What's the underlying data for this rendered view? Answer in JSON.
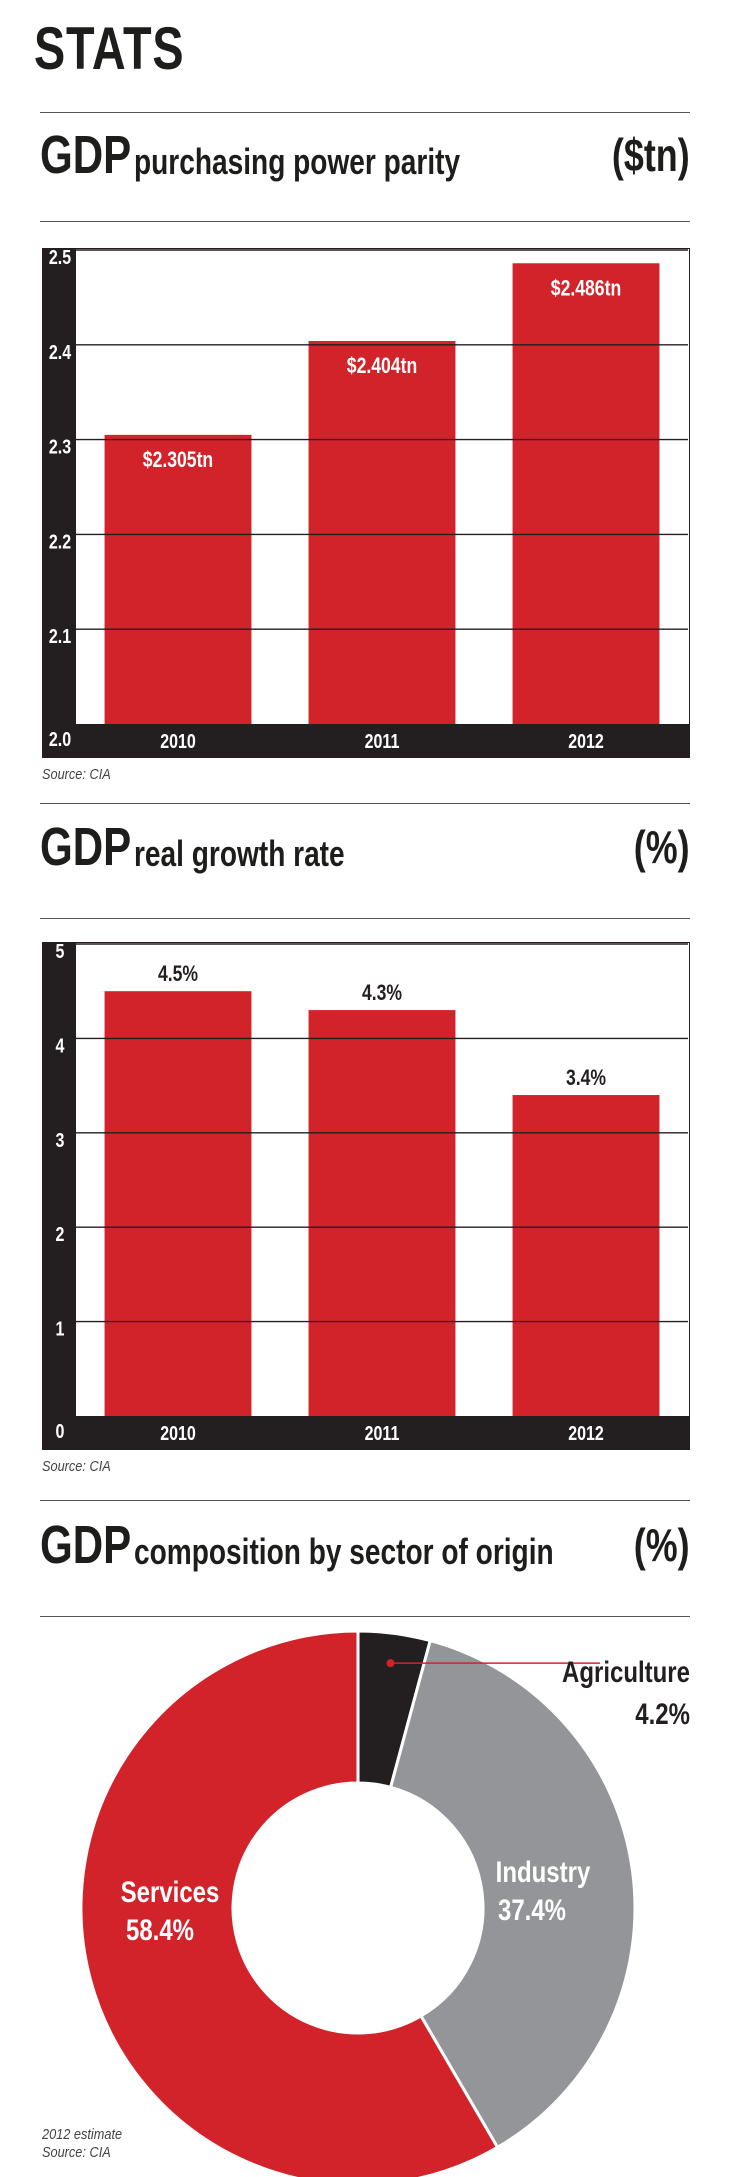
{
  "page_title": "STATS",
  "charts_headings": [
    {
      "big": "GDP",
      "sub": "purchasing power parity",
      "unit": "($tn)"
    },
    {
      "big": "GDP",
      "sub": "real growth rate",
      "unit": "(%)"
    },
    {
      "big": "GDP",
      "sub": "composition by sector of origin",
      "unit": "(%)"
    }
  ],
  "sources": {
    "chart1": "Source: CIA",
    "chart2": "Source: CIA",
    "chart3_note": "2012 estimate",
    "chart3": "Source: CIA"
  },
  "colors": {
    "red": "#d2232a",
    "dark": "#231f20",
    "gray": "#939598",
    "white": "#ffffff"
  },
  "chart_data": [
    {
      "type": "bar",
      "categories": [
        "2010",
        "2011",
        "2012"
      ],
      "values": [
        2.305,
        2.404,
        2.486
      ],
      "data_labels": [
        "$2.305tn",
        "$2.404tn",
        "$2.486tn"
      ],
      "yticks": [
        "2.0",
        "2.1",
        "2.2",
        "2.3",
        "2.4",
        "2.5"
      ],
      "ylim": [
        2.0,
        2.5
      ],
      "label_position": "inside",
      "grid": true
    },
    {
      "type": "bar",
      "categories": [
        "2010",
        "2011",
        "2012"
      ],
      "values": [
        4.5,
        4.3,
        3.4
      ],
      "data_labels": [
        "4.5%",
        "4.3%",
        "3.4%"
      ],
      "yticks": [
        "0",
        "1",
        "2",
        "3",
        "4",
        "5"
      ],
      "ylim": [
        0,
        5
      ],
      "label_position": "above",
      "grid": true
    },
    {
      "type": "pie",
      "donut": true,
      "slices": [
        {
          "name": "Agriculture",
          "value": 4.2,
          "label": "4.2%",
          "color": "#231f20"
        },
        {
          "name": "Industry",
          "value": 37.4,
          "label": "37.4%",
          "color": "#939598"
        },
        {
          "name": "Services",
          "value": 58.4,
          "label": "58.4%",
          "color": "#d2232a"
        }
      ]
    }
  ]
}
